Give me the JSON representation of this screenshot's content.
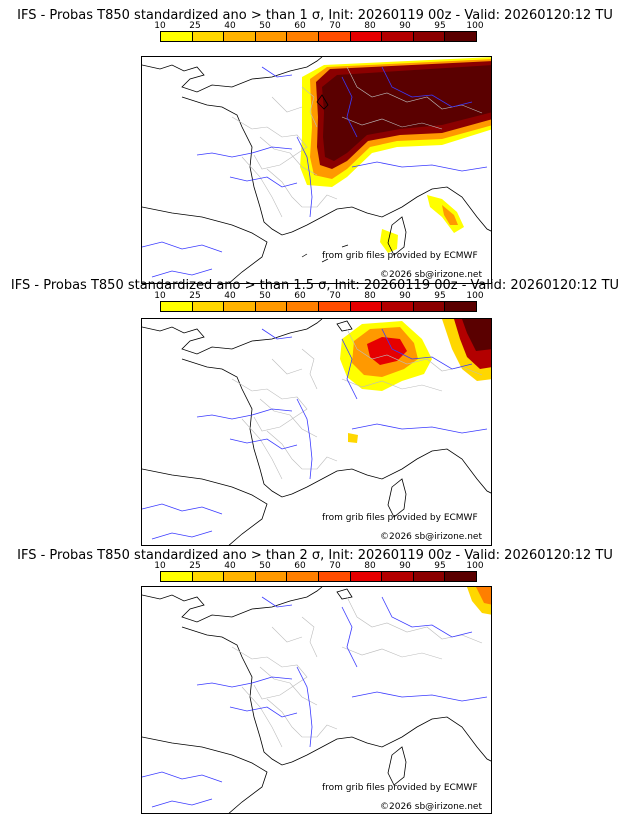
{
  "colors": {
    "scale": [
      "#ffff00",
      "#ffd700",
      "#ffb300",
      "#ff9900",
      "#ff7f00",
      "#ff4d00",
      "#e60000",
      "#b30000",
      "#8b0000",
      "#5a0000"
    ],
    "coast": "#000000",
    "borders": "#bcbcbc",
    "rivers": "#3a3aff"
  },
  "legend": {
    "ticks": [
      "10",
      "25",
      "40",
      "50",
      "60",
      "70",
      "80",
      "90",
      "95",
      "100"
    ]
  },
  "panels": [
    {
      "title": "IFS - Probas T850  standardized ano > than 1 σ, Init: 20260119 00z - Valid: 20260120:12 TU",
      "credit": "from grib files provided by ECMWF",
      "copyright": "©2026 sb@irizone.net"
    },
    {
      "title": "IFS - Probas T850  standardized ano > than 1.5 σ, Init: 20260119 00z - Valid: 20260120:12 TU",
      "credit": "from grib files provided by ECMWF",
      "copyright": "©2026 sb@irizone.net"
    },
    {
      "title": "IFS - Probas T850  standardized ano > than 2 σ, Init: 20260119 00z - Valid: 20260120:12 TU",
      "credit": "from grib files provided by ECMWF",
      "copyright": "©2026 sb@irizone.net"
    }
  ]
}
